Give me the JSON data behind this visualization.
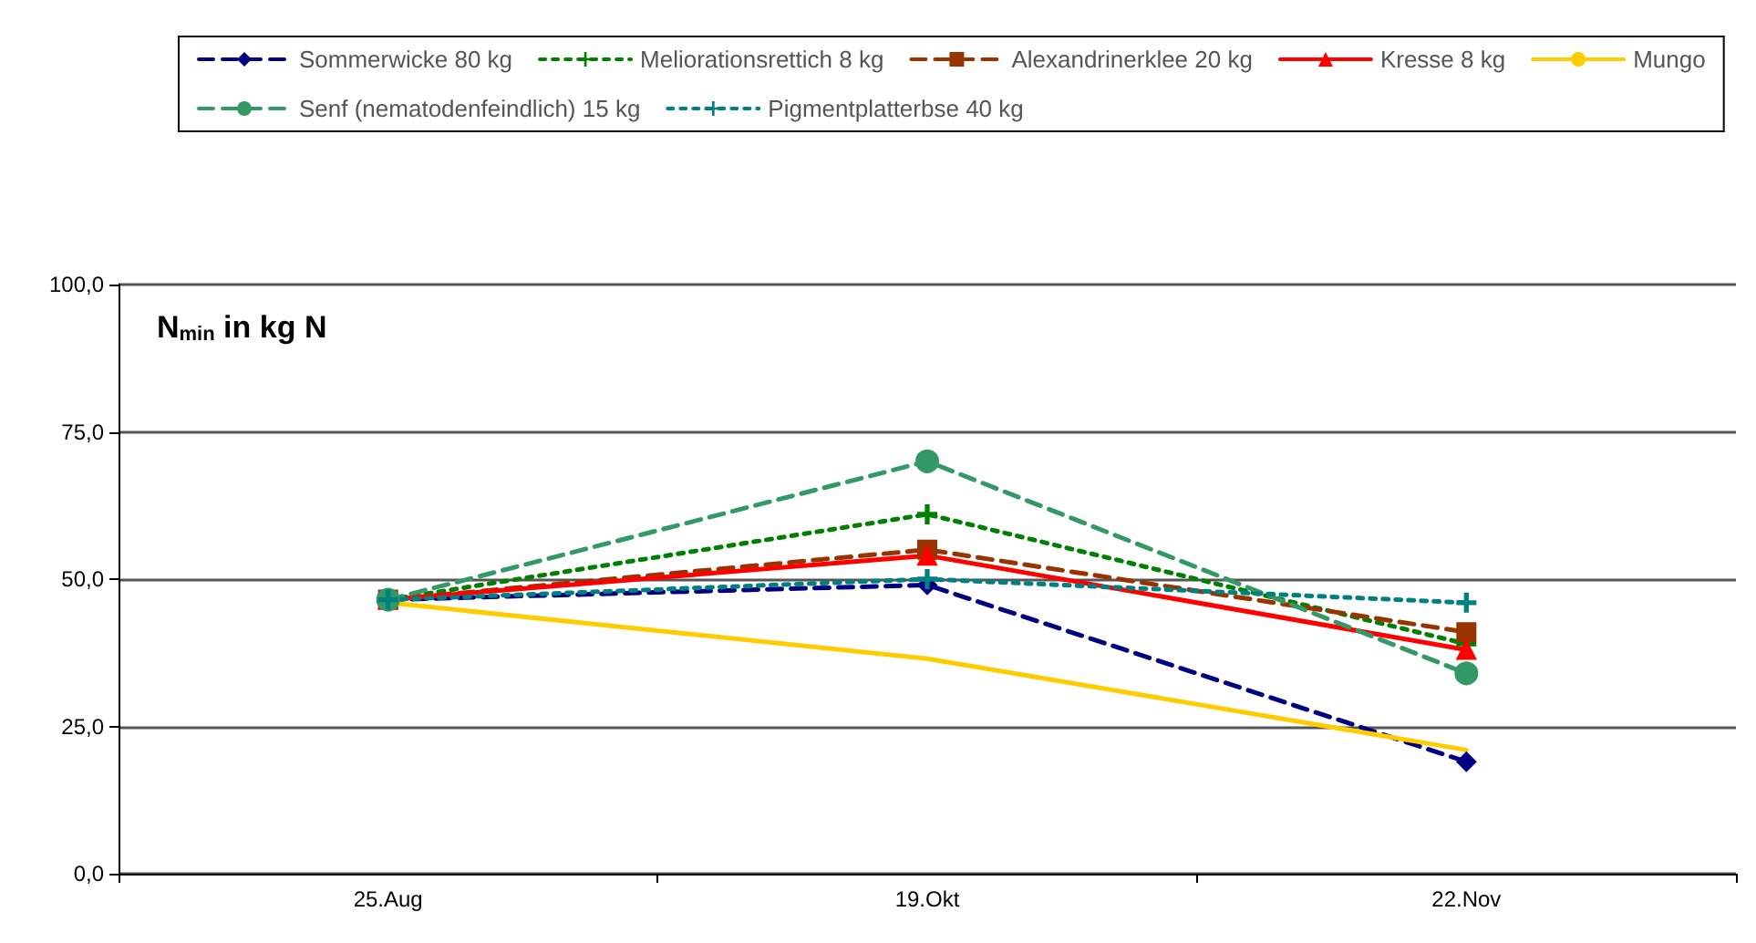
{
  "chart_data": {
    "type": "line",
    "ylabel": "N$_{min}$ in kg N",
    "categories": [
      "25.Aug",
      "19.Okt",
      "22.Nov"
    ],
    "series": [
      {
        "name": "Sommerwicke 80 kg",
        "color": "#000080",
        "values": [
          46.5,
          49,
          19
        ],
        "marker": "diamond",
        "line_style": "dashed"
      },
      {
        "name": "Meliorationsrettich 8 kg",
        "color": "#008000",
        "values": [
          46.5,
          61,
          39
        ],
        "marker": "cross",
        "line_style": "dotted"
      },
      {
        "name": "Alexandrinerklee 20 kg",
        "color": "#993300",
        "values": [
          46.5,
          55,
          41
        ],
        "marker": "square",
        "line_style": "dashed"
      },
      {
        "name": "Kresse 8 kg",
        "color": "#ff0000",
        "values": [
          46.5,
          54,
          38
        ],
        "marker": "triangle",
        "line_style": "solid"
      },
      {
        "name": "Mungo",
        "color": "#ffcc00",
        "values": [
          46,
          36.5,
          21
        ],
        "marker": "none",
        "line_style": "solid"
      },
      {
        "name": "Senf (nematodenfeindlich) 15 kg",
        "color": "#339966",
        "values": [
          46.5,
          70,
          34
        ],
        "marker": "circle",
        "line_style": "dashed"
      },
      {
        "name": "Pigmentplatterbse 40 kg",
        "color": "#008080",
        "values": [
          46.5,
          50,
          46
        ],
        "marker": "cross",
        "line_style": "dotted"
      }
    ],
    "ylim": [
      0,
      100
    ],
    "yticks": [
      {
        "value": 0,
        "label": "0,0"
      },
      {
        "value": 25,
        "label": "25,0"
      },
      {
        "value": 50,
        "label": "50,0"
      },
      {
        "value": 75,
        "label": "75,0"
      },
      {
        "value": 100,
        "label": "100,0"
      }
    ],
    "grid": "y",
    "legend": "top"
  }
}
